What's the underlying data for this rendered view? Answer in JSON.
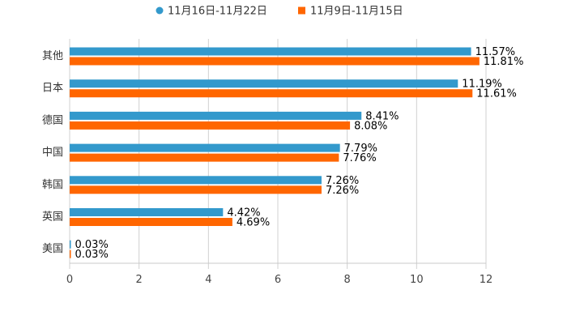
{
  "chart_data": {
    "type": "bar",
    "orientation": "horizontal",
    "categories": [
      "其他",
      "日本",
      "德国",
      "中国",
      "韩国",
      "英国",
      "美国"
    ],
    "series": [
      {
        "name": "11月16日-11月22日",
        "color": "#3399cc",
        "values": [
          11.57,
          11.19,
          8.41,
          7.79,
          7.26,
          4.42,
          0.03
        ]
      },
      {
        "name": "11月9日-11月15日",
        "color": "#ff6600",
        "values": [
          11.81,
          11.61,
          8.08,
          7.76,
          7.26,
          4.69,
          0.03
        ]
      }
    ],
    "value_suffix": "%",
    "xlim": [
      0,
      12
    ],
    "x_ticks": [
      "0",
      "2",
      "4",
      "6",
      "8",
      "10",
      "12"
    ],
    "grid": true,
    "legend_position": "top-center"
  }
}
